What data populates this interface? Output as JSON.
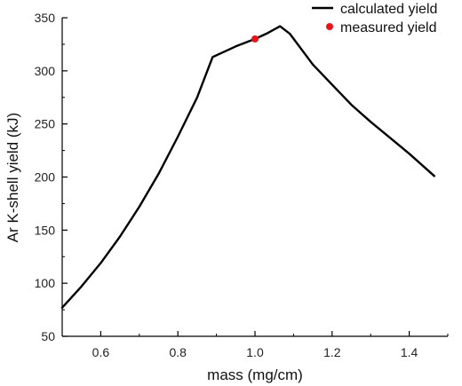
{
  "chart_data": {
    "type": "line",
    "xlabel": "mass (mg/cm)",
    "ylabel": "Ar K-shell yield (kJ)",
    "xlim": [
      0.5,
      1.5
    ],
    "ylim": [
      50,
      350
    ],
    "xticks": [
      0.6,
      0.8,
      1.0,
      1.2,
      1.4
    ],
    "xtick_labels": [
      "0.6",
      "0.8",
      "1.0",
      "1.2",
      "1.4"
    ],
    "yticks": [
      50,
      100,
      150,
      200,
      250,
      300,
      350
    ],
    "ytick_labels": [
      "50",
      "100",
      "150",
      "200",
      "250",
      "300",
      "350"
    ],
    "grid": false,
    "legend_position": "top-right",
    "legend": [
      {
        "label": "calculated yield",
        "marker": "line",
        "color": "#000000"
      },
      {
        "label": "measured yield",
        "marker": "dot",
        "color": "#e8141b"
      }
    ],
    "series": [
      {
        "name": "calculated yield",
        "type": "line",
        "color": "#000000",
        "x": [
          0.5,
          0.55,
          0.6,
          0.65,
          0.7,
          0.75,
          0.8,
          0.85,
          0.89,
          0.95,
          1.0,
          1.03,
          1.065,
          1.09,
          1.15,
          1.2,
          1.25,
          1.3,
          1.35,
          1.4,
          1.465
        ],
        "y": [
          77,
          97,
          119,
          144,
          172,
          203,
          238,
          275,
          313,
          323,
          330,
          335,
          342,
          335,
          306,
          287,
          268,
          252,
          237,
          222,
          201
        ]
      },
      {
        "name": "measured yield",
        "type": "scatter",
        "color": "#e8141b",
        "x": [
          1.0
        ],
        "y": [
          330
        ]
      }
    ]
  }
}
